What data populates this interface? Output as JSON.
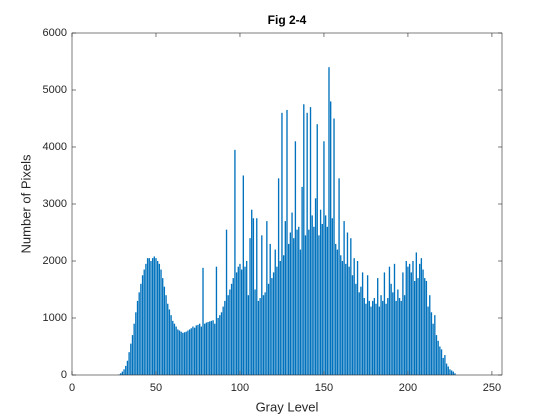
{
  "chart_data": {
    "type": "bar",
    "title": "Fig 2-4",
    "xlabel": "Gray Level",
    "ylabel": "Number of Pixels",
    "color": "#0072bd",
    "x": [
      25,
      26,
      27,
      28,
      29,
      30,
      31,
      32,
      33,
      34,
      35,
      36,
      37,
      38,
      39,
      40,
      41,
      42,
      43,
      44,
      45,
      46,
      47,
      48,
      49,
      50,
      51,
      52,
      53,
      54,
      55,
      56,
      57,
      58,
      59,
      60,
      61,
      62,
      63,
      64,
      65,
      66,
      67,
      68,
      69,
      70,
      71,
      72,
      73,
      74,
      75,
      76,
      77,
      78,
      79,
      80,
      81,
      82,
      83,
      84,
      85,
      86,
      87,
      88,
      89,
      90,
      91,
      92,
      93,
      94,
      95,
      96,
      97,
      98,
      99,
      100,
      101,
      102,
      103,
      104,
      105,
      106,
      107,
      108,
      109,
      110,
      111,
      112,
      113,
      114,
      115,
      116,
      117,
      118,
      119,
      120,
      121,
      122,
      123,
      124,
      125,
      126,
      127,
      128,
      129,
      130,
      131,
      132,
      133,
      134,
      135,
      136,
      137,
      138,
      139,
      140,
      141,
      142,
      143,
      144,
      145,
      146,
      147,
      148,
      149,
      150,
      151,
      152,
      153,
      154,
      155,
      156,
      157,
      158,
      159,
      160,
      161,
      162,
      163,
      164,
      165,
      166,
      167,
      168,
      169,
      170,
      171,
      172,
      173,
      174,
      175,
      176,
      177,
      178,
      179,
      180,
      181,
      182,
      183,
      184,
      185,
      186,
      187,
      188,
      189,
      190,
      191,
      192,
      193,
      194,
      195,
      196,
      197,
      198,
      199,
      200,
      201,
      202,
      203,
      204,
      205,
      206,
      207,
      208,
      209,
      210,
      211,
      212,
      213,
      214,
      215,
      216,
      217,
      218,
      219,
      220,
      221,
      222,
      223,
      224,
      225,
      226,
      227,
      228,
      229
    ],
    "values": [
      0,
      0,
      0,
      10,
      30,
      60,
      100,
      160,
      250,
      400,
      550,
      700,
      900,
      1100,
      1300,
      1450,
      1600,
      1750,
      1850,
      1950,
      2050,
      2050,
      2000,
      2050,
      2080,
      2050,
      2000,
      1950,
      1850,
      1700,
      1550,
      1400,
      1250,
      1150,
      1050,
      950,
      900,
      850,
      800,
      780,
      760,
      740,
      750,
      760,
      780,
      800,
      820,
      850,
      830,
      870,
      880,
      900,
      850,
      1880,
      900,
      920,
      930,
      940,
      950,
      960,
      900,
      1900,
      1000,
      1050,
      1100,
      1200,
      1300,
      2550,
      1400,
      1500,
      1600,
      1700,
      3950,
      1800,
      1900,
      1950,
      1850,
      3500,
      1900,
      2000,
      1400,
      2400,
      2900,
      2750,
      1500,
      2750,
      1300,
      1350,
      2450,
      1400,
      1450,
      2700,
      1600,
      2300,
      1700,
      1800,
      2200,
      1900,
      3450,
      2000,
      4600,
      2100,
      2700,
      4650,
      2300,
      2500,
      2850,
      2400,
      4100,
      2550,
      2600,
      2200,
      3300,
      4750,
      2450,
      4600,
      2550,
      4700,
      2800,
      2600,
      3100,
      4400,
      2450,
      2900,
      2650,
      4100,
      2800,
      2600,
      5400,
      4800,
      2750,
      4500,
      2300,
      2200,
      3450,
      2100,
      2000,
      2700,
      1950,
      2500,
      1900,
      2400,
      1750,
      2050,
      1600,
      2000,
      1450,
      1550,
      1800,
      1350,
      1250,
      1750,
      1300,
      1200,
      1300,
      1350,
      1250,
      1700,
      1200,
      1400,
      1300,
      1800,
      1250,
      1350,
      1900,
      1600,
      1450,
      1950,
      1300,
      1500,
      1350,
      1300,
      1800,
      1400,
      2000,
      1900,
      1950,
      1800,
      2000,
      1650,
      2150,
      1700,
      1950,
      2050,
      1850,
      1700,
      1650,
      1200,
      1400,
      1100,
      900,
      1050,
      700,
      600,
      500,
      450,
      300,
      350,
      200,
      150,
      100,
      80,
      60,
      30,
      0
    ],
    "xlim": [
      0,
      256
    ],
    "xticks": [
      0,
      50,
      100,
      150,
      200,
      250
    ],
    "ylim": [
      0,
      6000
    ],
    "yticks": [
      0,
      1000,
      2000,
      3000,
      4000,
      5000,
      6000
    ]
  }
}
